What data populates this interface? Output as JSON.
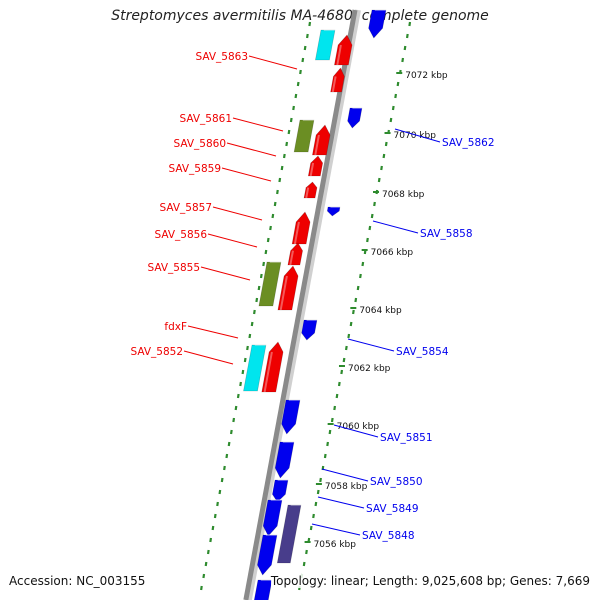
{
  "title": "Streptomyces avermitilis MA-4680, complete genome",
  "footer": {
    "accession": "Accession: NC_003155",
    "meta": "Topology: linear; Length: 9,025,608 bp; Genes: 7,669"
  },
  "colors": {
    "forward_gene": "#ee0000",
    "reverse_gene": "#0000ee",
    "rRNA_like": "#00e5ee",
    "misc_feature": "#6b8e23",
    "reverse_misc": "#483d8b",
    "ruler_dots": "#2e8b2e",
    "backbone": "#8a8a8a"
  },
  "ruler": {
    "ticks": [
      "7072 kbp",
      "7070 kbp",
      "7068 kbp",
      "7066 kbp",
      "7064 kbp",
      "7062 kbp",
      "7060 kbp",
      "7058 kbp",
      "7056 kbp"
    ]
  },
  "forward_labels": [
    "SAV_5863",
    "SAV_5861",
    "SAV_5860",
    "SAV_5859",
    "SAV_5857",
    "SAV_5856",
    "SAV_5855",
    "fdxF",
    "SAV_5852"
  ],
  "reverse_labels": [
    "SAV_5862",
    "SAV_5858",
    "SAV_5854",
    "SAV_5851",
    "SAV_5850",
    "SAV_5849",
    "SAV_5848"
  ]
}
